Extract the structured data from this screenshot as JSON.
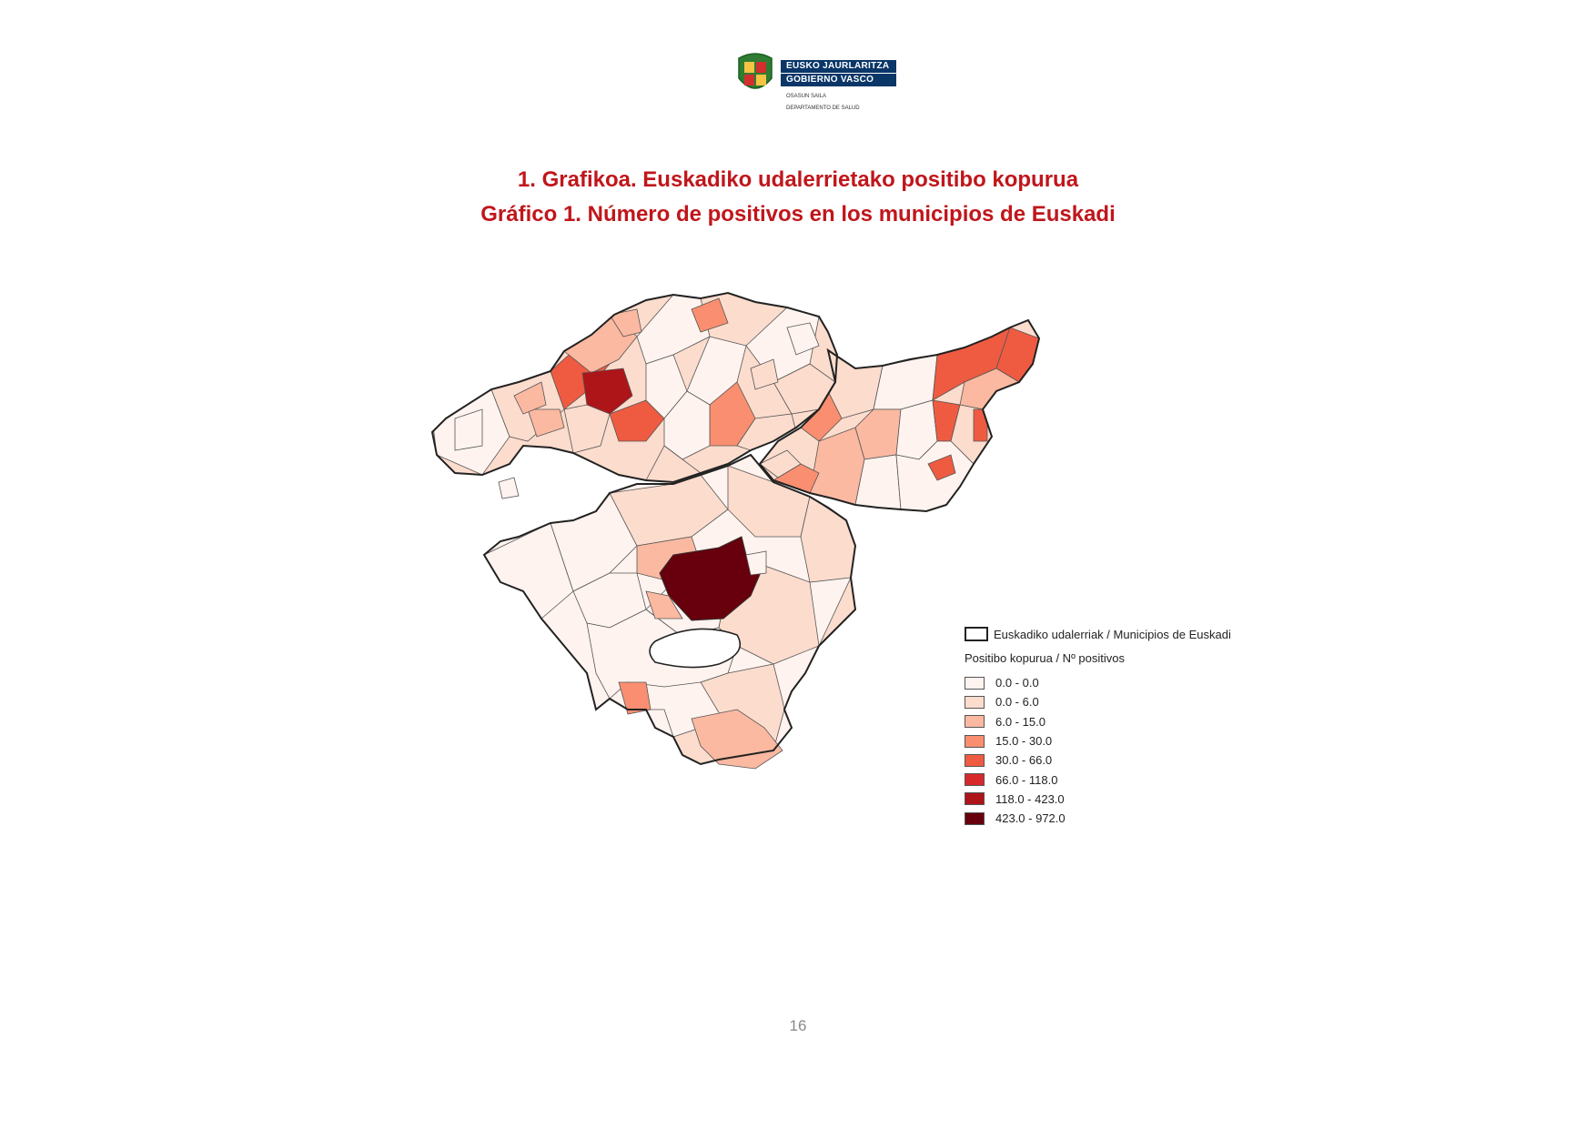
{
  "header": {
    "logo_line1": "EUSKO JAURLARITZA",
    "logo_line2": "GOBIERNO VASCO",
    "dept_eu": "OSASUN SAILA",
    "dept_es": "DEPARTAMENTO DE SALUD"
  },
  "titles": {
    "line1": "1. Grafikoa. Euskadiko udalerrietako positibo kopurua",
    "line2": "Gráfico 1. Número de positivos en los municipios de Euskadi"
  },
  "legend": {
    "boundary_label": "Euskadiko udalerriak / Municipios de Euskadi",
    "title": "Positibo kopurua / Nº positivos",
    "classes": [
      {
        "label": "0.0 - 0.0",
        "color": "#fef3ef"
      },
      {
        "label": "0.0 - 6.0",
        "color": "#fcdccd"
      },
      {
        "label": "6.0 - 15.0",
        "color": "#fbb9a1"
      },
      {
        "label": "15.0 - 30.0",
        "color": "#f98f70"
      },
      {
        "label": "30.0 - 66.0",
        "color": "#ef5b41"
      },
      {
        "label": "66.0 - 118.0",
        "color": "#d7292b"
      },
      {
        "label": "118.0 - 423.0",
        "color": "#ad1519"
      },
      {
        "label": "423.0 - 972.0",
        "color": "#67000c"
      }
    ]
  },
  "page_number": "16"
}
